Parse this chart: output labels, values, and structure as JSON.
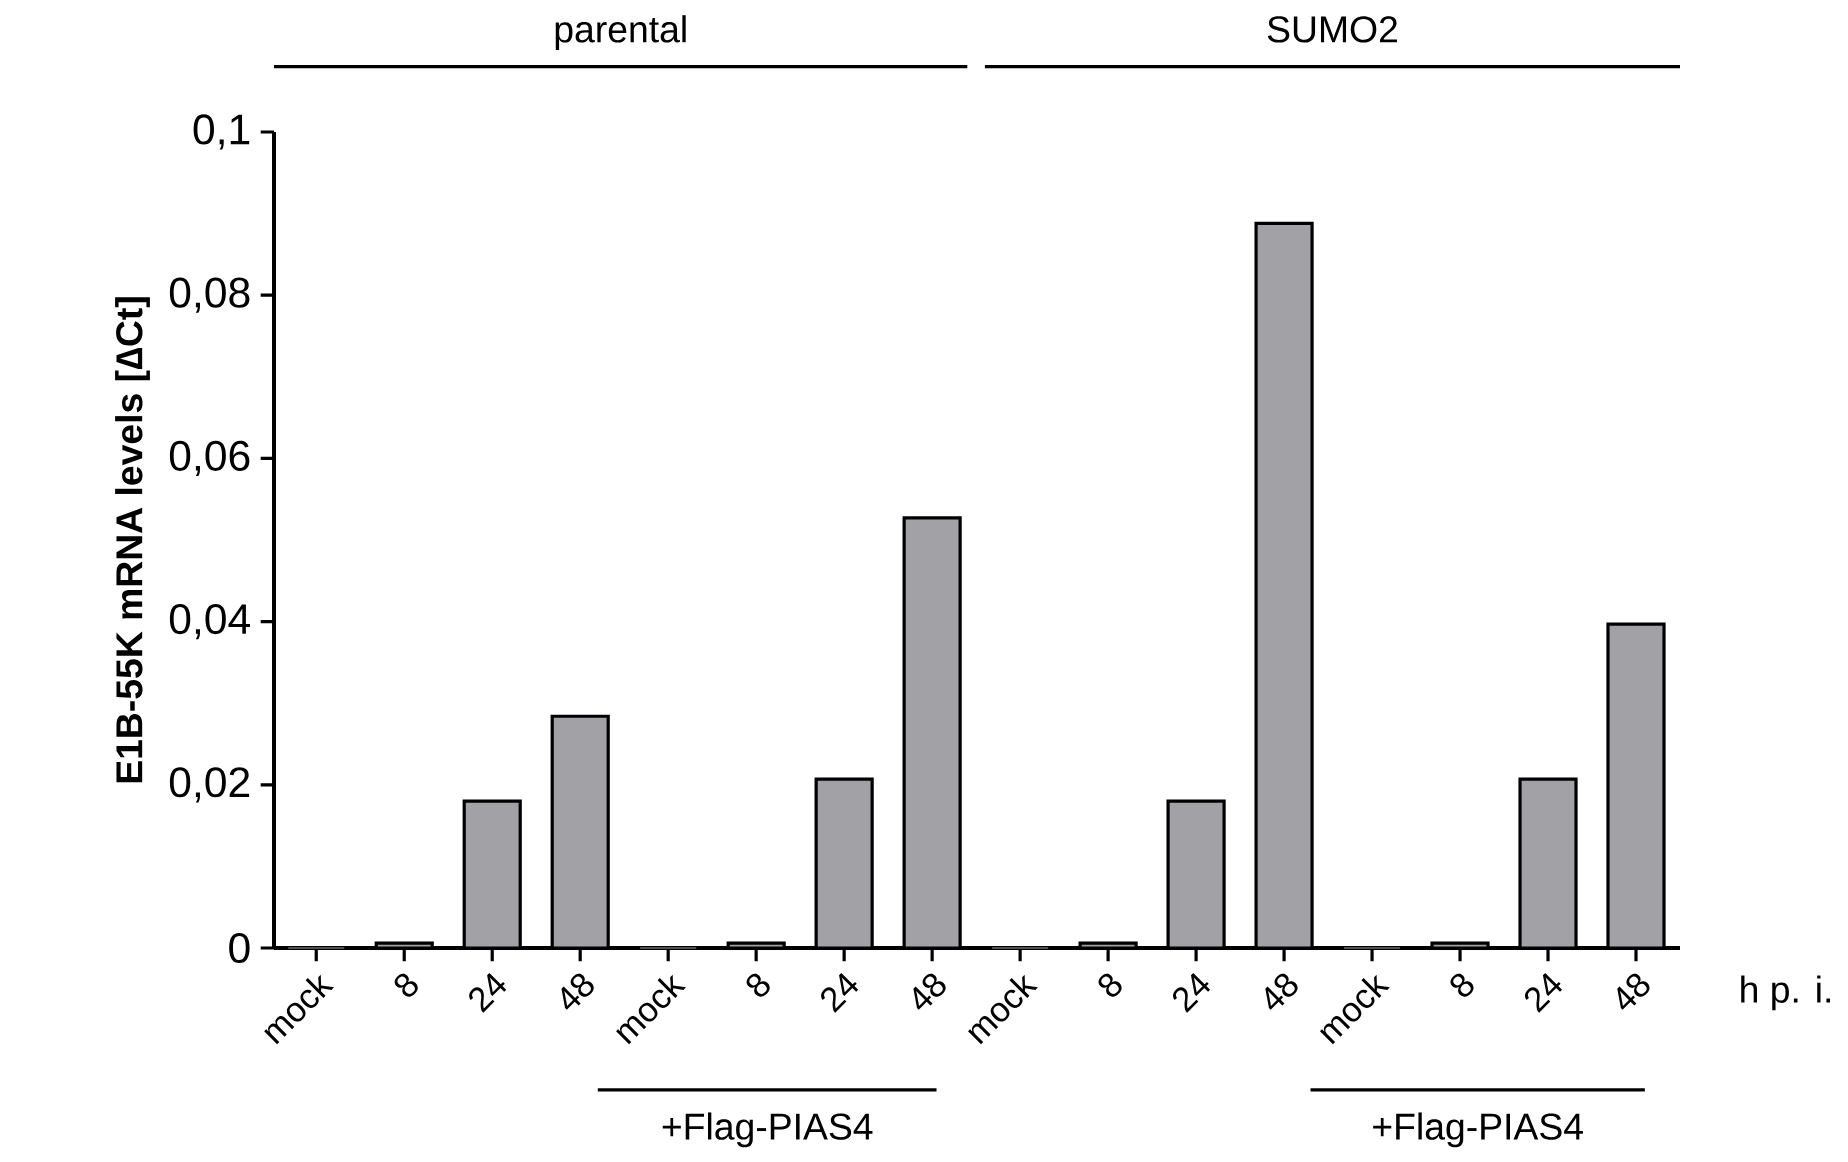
{
  "chart_data": {
    "type": "bar",
    "ylabel": "E1B-55K mRNA levels [∆Ct]",
    "categories": [
      "mock",
      "8",
      "24",
      "48",
      "mock",
      "8",
      "24",
      "48",
      "mock",
      "8",
      "24",
      "48",
      "mock",
      "8",
      "24",
      "48"
    ],
    "values": [
      0,
      0.0006,
      0.018,
      0.0284,
      0,
      0.0006,
      0.0207,
      0.0527,
      0,
      0.0006,
      0.018,
      0.0888,
      0,
      0.0006,
      0.0207,
      0.0397
    ],
    "color": "#a2a1a6",
    "ylim": [
      0,
      0.1
    ],
    "yticks": [
      {
        "value": 0,
        "label": "0"
      },
      {
        "value": 0.02,
        "label": "0,02"
      },
      {
        "value": 0.04,
        "label": "0,04"
      },
      {
        "value": 0.06,
        "label": "0,06"
      },
      {
        "value": 0.08,
        "label": "0,08"
      },
      {
        "value": 0.1,
        "label": "0,1"
      }
    ],
    "annotations": [
      "parental",
      "SUMO2",
      "+Flag-PIAS4",
      "+Flag-PIAS4",
      "h p. i."
    ],
    "grid": false
  }
}
